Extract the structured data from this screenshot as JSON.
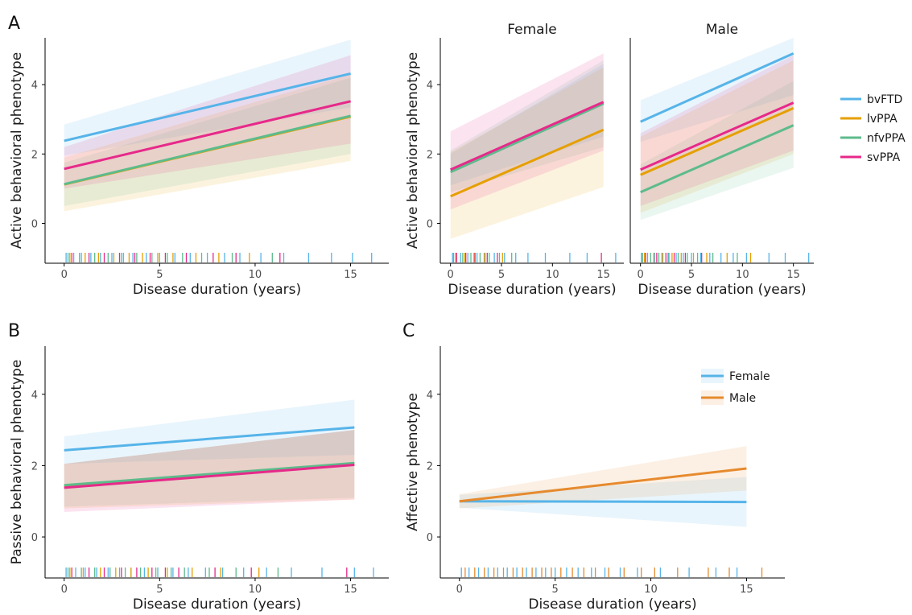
{
  "colors": {
    "bvFTD": "#56B4E9",
    "lvPPA": "#E69F00",
    "nfvPPA": "#5DBB8B",
    "svPPA": "#E7298A",
    "Female": "#56B4E9",
    "Male": "#E68A2E",
    "axis": "#000000"
  },
  "chart_data": [
    {
      "id": "A-left",
      "type": "line",
      "panel_label": "A",
      "strip_title": "",
      "xlabel": "Disease duration (years)",
      "ylabel": "Active behavioral phenotype",
      "xlim": [
        -1,
        17
      ],
      "ylim": [
        -1.15,
        5.35
      ],
      "xticks": [
        0,
        5,
        10,
        15
      ],
      "yticks": [
        0,
        2,
        4
      ],
      "grid": false,
      "series": [
        {
          "name": "bvFTD",
          "x": [
            0,
            15
          ],
          "y": [
            2.38,
            4.32
          ],
          "lower": [
            1.95,
            3.35
          ],
          "upper": [
            2.85,
            5.3
          ]
        },
        {
          "name": "lvPPA",
          "x": [
            0,
            15
          ],
          "y": [
            1.12,
            3.08
          ],
          "lower": [
            0.35,
            1.8
          ],
          "upper": [
            1.9,
            4.3
          ]
        },
        {
          "name": "nfvPPA",
          "x": [
            0,
            15
          ],
          "y": [
            1.13,
            3.1
          ],
          "lower": [
            0.5,
            2.0
          ],
          "upper": [
            1.75,
            4.2
          ]
        },
        {
          "name": "svPPA",
          "x": [
            0,
            15
          ],
          "y": [
            1.57,
            3.52
          ],
          "lower": [
            1.0,
            2.3
          ],
          "upper": [
            2.2,
            4.85
          ]
        }
      ]
    },
    {
      "id": "A-female",
      "type": "line",
      "panel_label": "",
      "strip_title": "Female",
      "xlabel": "Disease duration (years)",
      "ylabel": "Active behavioral phenotype",
      "xlim": [
        -1,
        17
      ],
      "ylim": [
        -1.15,
        5.35
      ],
      "xticks": [
        0,
        5,
        10,
        15
      ],
      "yticks": [
        0,
        2,
        4
      ],
      "grid": false,
      "series": [
        {
          "name": "bvFTD",
          "x": [
            0,
            15
          ],
          "y": [
            1.55,
            3.48
          ],
          "lower": [
            1.1,
            2.5
          ],
          "upper": [
            2.0,
            4.6
          ]
        },
        {
          "name": "lvPPA",
          "x": [
            0,
            15
          ],
          "y": [
            0.78,
            2.7
          ],
          "lower": [
            -0.45,
            1.05
          ],
          "upper": [
            2.05,
            4.5
          ]
        },
        {
          "name": "nfvPPA",
          "x": [
            0,
            15
          ],
          "y": [
            1.48,
            3.45
          ],
          "lower": [
            0.9,
            2.2
          ],
          "upper": [
            2.1,
            4.7
          ]
        },
        {
          "name": "svPPA",
          "x": [
            0,
            15
          ],
          "y": [
            1.55,
            3.5
          ],
          "lower": [
            0.4,
            2.1
          ],
          "upper": [
            2.65,
            4.9
          ]
        }
      ]
    },
    {
      "id": "A-male",
      "type": "line",
      "panel_label": "",
      "strip_title": "Male",
      "xlabel": "Disease duration (years)",
      "ylabel": "",
      "xlim": [
        -1,
        17
      ],
      "ylim": [
        -1.15,
        5.35
      ],
      "xticks": [
        0,
        5,
        10,
        15
      ],
      "yticks": [],
      "grid": false,
      "series": [
        {
          "name": "bvFTD",
          "x": [
            0,
            15
          ],
          "y": [
            2.93,
            4.9
          ],
          "lower": [
            2.35,
            3.7
          ],
          "upper": [
            3.55,
            5.35
          ]
        },
        {
          "name": "lvPPA",
          "x": [
            0,
            15
          ],
          "y": [
            1.4,
            3.32
          ],
          "lower": [
            0.3,
            2.0
          ],
          "upper": [
            2.5,
            4.7
          ]
        },
        {
          "name": "nfvPPA",
          "x": [
            0,
            15
          ],
          "y": [
            0.9,
            2.83
          ],
          "lower": [
            0.1,
            1.6
          ],
          "upper": [
            1.7,
            4.1
          ]
        },
        {
          "name": "svPPA",
          "x": [
            0,
            15
          ],
          "y": [
            1.55,
            3.48
          ],
          "lower": [
            0.5,
            2.1
          ],
          "upper": [
            2.6,
            4.85
          ]
        }
      ]
    },
    {
      "id": "B",
      "type": "line",
      "panel_label": "B",
      "strip_title": "",
      "xlabel": "Disease duration (years)",
      "ylabel": "Passive behavioral phenotype",
      "xlim": [
        -1,
        17
      ],
      "ylim": [
        -1.15,
        5.35
      ],
      "xticks": [
        0,
        5,
        10,
        15
      ],
      "yticks": [
        0,
        2,
        4
      ],
      "grid": false,
      "series": [
        {
          "name": "bvFTD",
          "x": [
            0,
            15.2
          ],
          "y": [
            2.43,
            3.07
          ],
          "lower": [
            2.05,
            2.3
          ],
          "upper": [
            2.82,
            3.85
          ]
        },
        {
          "name": "lvPPA",
          "x": [
            0,
            15.2
          ],
          "y": [
            1.42,
            2.05
          ],
          "lower": [
            0.8,
            1.05
          ],
          "upper": [
            2.05,
            3.0
          ]
        },
        {
          "name": "nfvPPA",
          "x": [
            0,
            15.2
          ],
          "y": [
            1.45,
            2.07
          ],
          "lower": [
            0.85,
            1.1
          ],
          "upper": [
            2.05,
            3.0
          ]
        },
        {
          "name": "svPPA",
          "x": [
            0,
            15.2
          ],
          "y": [
            1.38,
            2.02
          ],
          "lower": [
            0.7,
            1.05
          ],
          "upper": [
            2.05,
            3.0
          ]
        }
      ]
    },
    {
      "id": "C",
      "type": "line",
      "panel_label": "C",
      "strip_title": "",
      "xlabel": "Disease duration (years)",
      "ylabel": "Affective  phenotype",
      "xlim": [
        -1,
        17
      ],
      "ylim": [
        -1.15,
        5.35
      ],
      "xticks": [
        0,
        5,
        10,
        15
      ],
      "yticks": [
        0,
        2,
        4
      ],
      "grid": false,
      "legend": "top-right",
      "series": [
        {
          "name": "Female",
          "x": [
            0,
            15
          ],
          "y": [
            1.0,
            0.98
          ],
          "lower": [
            0.82,
            0.28
          ],
          "upper": [
            1.18,
            1.68
          ]
        },
        {
          "name": "Male",
          "x": [
            0,
            15
          ],
          "y": [
            1.0,
            1.92
          ],
          "lower": [
            0.8,
            1.3
          ],
          "upper": [
            1.2,
            2.55
          ]
        }
      ]
    }
  ],
  "legends": {
    "diagnosis": [
      "bvFTD",
      "lvPPA",
      "nfvPPA",
      "svPPA"
    ],
    "sex": [
      "Female",
      "Male"
    ]
  },
  "rugs": {
    "A-left": {
      "bvFTD": [
        0.1,
        0.5,
        0.9,
        1.4,
        1.9,
        2.5,
        3.1,
        3.6,
        4.3,
        5.0,
        5.8,
        6.6,
        7.5,
        8.4,
        9.2,
        10.3,
        11.5,
        12.8,
        14.0,
        15.1,
        16.1
      ],
      "lvPPA": [
        0.3,
        1.1,
        1.8,
        2.6,
        3.4,
        4.1,
        4.9,
        5.7,
        6.9,
        8.1,
        9.7
      ],
      "nfvPPA": [
        0.2,
        0.8,
        1.6,
        2.3,
        3.0,
        3.8,
        4.6,
        5.4,
        6.2,
        7.2,
        8.8,
        10.9
      ],
      "svPPA": [
        0.4,
        1.3,
        2.1,
        2.9,
        3.7,
        4.5,
        5.3,
        6.4,
        7.8,
        9.0,
        11.3
      ]
    },
    "A-female": {
      "bvFTD": [
        0.2,
        1.0,
        1.7,
        2.6,
        3.4,
        4.3,
        5.3,
        6.4,
        7.6,
        9.3,
        11.7,
        13.4,
        16.2
      ],
      "lvPPA": [
        0.5,
        1.4,
        2.3,
        3.3,
        5.1
      ],
      "nfvPPA": [
        0.3,
        1.2,
        2.0,
        2.9,
        3.8,
        4.8,
        6.0
      ],
      "svPPA": [
        0.6,
        1.5,
        2.4,
        3.6,
        4.6,
        14.8
      ]
    },
    "A-male": {
      "bvFTD": [
        0.1,
        0.7,
        1.4,
        2.1,
        2.8,
        3.5,
        4.2,
        5.0,
        5.9,
        6.8,
        7.9,
        9.1,
        10.4,
        12.6,
        14.2,
        16.5
      ],
      "lvPPA": [
        0.4,
        1.3,
        2.2,
        3.1,
        4.0,
        5.2,
        6.5,
        8.5,
        10.8
      ],
      "nfvPPA": [
        0.2,
        1.0,
        1.8,
        2.7,
        3.7,
        4.6,
        5.6,
        7.1,
        9.5
      ],
      "svPPA": [
        0.5,
        1.6,
        2.5,
        3.3,
        4.4,
        6.0
      ]
    },
    "B": {
      "bvFTD": [
        0.1,
        0.6,
        1.1,
        1.7,
        2.3,
        2.9,
        3.5,
        4.2,
        4.9,
        5.7,
        6.5,
        7.4,
        8.3,
        9.4,
        10.6,
        11.9,
        13.5,
        15.2,
        16.2
      ],
      "lvPPA": [
        0.3,
        1.0,
        1.9,
        2.7,
        3.5,
        4.4,
        5.4,
        6.7,
        8.2,
        10.2
      ],
      "nfvPPA": [
        0.2,
        0.9,
        1.6,
        2.4,
        3.2,
        4.0,
        4.8,
        5.6,
        6.3,
        7.6,
        9.0,
        11.2
      ],
      "svPPA": [
        0.4,
        1.3,
        2.1,
        3.0,
        3.8,
        4.6,
        5.3,
        6.0,
        7.9,
        9.8,
        14.8
      ]
    },
    "C": {
      "Female": [
        0.1,
        0.5,
        1.0,
        1.5,
        2.0,
        2.5,
        3.0,
        3.5,
        4.0,
        4.5,
        5.0,
        5.6,
        6.2,
        6.9,
        7.6,
        8.4,
        9.3,
        10.5,
        12.0,
        13.4,
        14.5
      ],
      "Male": [
        0.3,
        0.8,
        1.3,
        1.8,
        2.3,
        2.8,
        3.3,
        3.8,
        4.3,
        4.8,
        5.3,
        5.9,
        6.5,
        7.1,
        7.8,
        8.6,
        9.5,
        10.2,
        11.4,
        13.0,
        14.1,
        15.8
      ]
    }
  }
}
